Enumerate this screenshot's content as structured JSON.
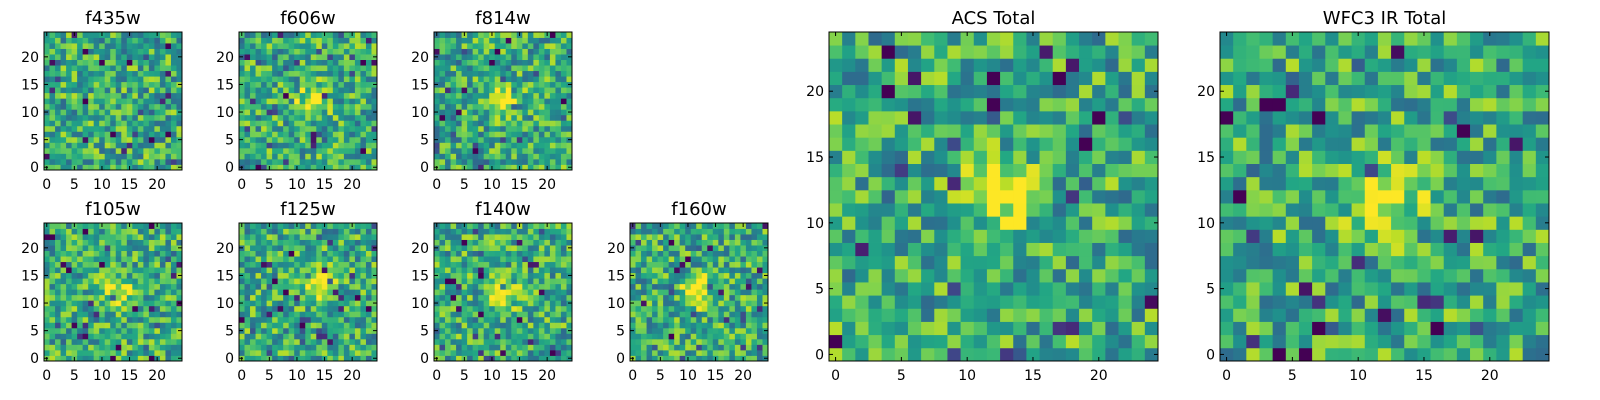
{
  "figure": {
    "colormap": "viridis",
    "axis_frame_color": "#000000"
  },
  "chart_data": [
    {
      "type": "heatmap",
      "title": "f435w",
      "grid_size": [
        25,
        25
      ],
      "xlim": [
        0,
        24
      ],
      "ylim": [
        0,
        24
      ],
      "xticks": [
        "0",
        "5",
        "10",
        "15",
        "20"
      ],
      "yticks": [
        "0",
        "5",
        "10",
        "15",
        "20"
      ],
      "source_peak": null
    },
    {
      "type": "heatmap",
      "title": "f606w",
      "grid_size": [
        25,
        25
      ],
      "xlim": [
        0,
        24
      ],
      "ylim": [
        0,
        24
      ],
      "xticks": [
        "0",
        "5",
        "10",
        "15",
        "20"
      ],
      "yticks": [
        "0",
        "5",
        "10",
        "15",
        "20"
      ],
      "source_peak": [
        13,
        12
      ]
    },
    {
      "type": "heatmap",
      "title": "f814w",
      "grid_size": [
        25,
        25
      ],
      "xlim": [
        0,
        24
      ],
      "ylim": [
        0,
        24
      ],
      "xticks": [
        "0",
        "5",
        "10",
        "15",
        "20"
      ],
      "yticks": [
        "0",
        "5",
        "10",
        "15",
        "20"
      ],
      "source_peak": [
        12,
        12
      ]
    },
    {
      "type": "heatmap",
      "title": "f105w",
      "grid_size": [
        25,
        25
      ],
      "xlim": [
        0,
        24
      ],
      "ylim": [
        0,
        24
      ],
      "xticks": [
        "0",
        "5",
        "10",
        "15",
        "20"
      ],
      "yticks": [
        "0",
        "5",
        "10",
        "15",
        "20"
      ],
      "source_peak": [
        13,
        12
      ]
    },
    {
      "type": "heatmap",
      "title": "f125w",
      "grid_size": [
        25,
        25
      ],
      "xlim": [
        0,
        24
      ],
      "ylim": [
        0,
        24
      ],
      "xticks": [
        "0",
        "5",
        "10",
        "15",
        "20"
      ],
      "yticks": [
        "0",
        "5",
        "10",
        "15",
        "20"
      ],
      "source_peak": [
        14,
        13
      ]
    },
    {
      "type": "heatmap",
      "title": "f140w",
      "grid_size": [
        25,
        25
      ],
      "xlim": [
        0,
        24
      ],
      "ylim": [
        0,
        24
      ],
      "xticks": [
        "0",
        "5",
        "10",
        "15",
        "20"
      ],
      "yticks": [
        "0",
        "5",
        "10",
        "15",
        "20"
      ],
      "source_peak": [
        12,
        12
      ]
    },
    {
      "type": "heatmap",
      "title": "f160w",
      "grid_size": [
        25,
        25
      ],
      "xlim": [
        0,
        24
      ],
      "ylim": [
        0,
        24
      ],
      "xticks": [
        "0",
        "5",
        "10",
        "15",
        "20"
      ],
      "yticks": [
        "0",
        "5",
        "10",
        "15",
        "20"
      ],
      "source_peak": [
        12,
        12
      ]
    },
    {
      "type": "heatmap",
      "title": "ACS Total",
      "grid_size": [
        25,
        25
      ],
      "xlim": [
        0,
        24
      ],
      "ylim": [
        0,
        24
      ],
      "xticks": [
        "0",
        "5",
        "10",
        "15",
        "20"
      ],
      "yticks": [
        "0",
        "5",
        "10",
        "15",
        "20"
      ],
      "source_peak": [
        12,
        12
      ]
    },
    {
      "type": "heatmap",
      "title": "WFC3 IR Total",
      "grid_size": [
        25,
        25
      ],
      "xlim": [
        0,
        24
      ],
      "ylim": [
        0,
        24
      ],
      "xticks": [
        "0",
        "5",
        "10",
        "15",
        "20"
      ],
      "yticks": [
        "0",
        "5",
        "10",
        "15",
        "20"
      ],
      "source_peak": [
        12,
        12
      ]
    }
  ]
}
